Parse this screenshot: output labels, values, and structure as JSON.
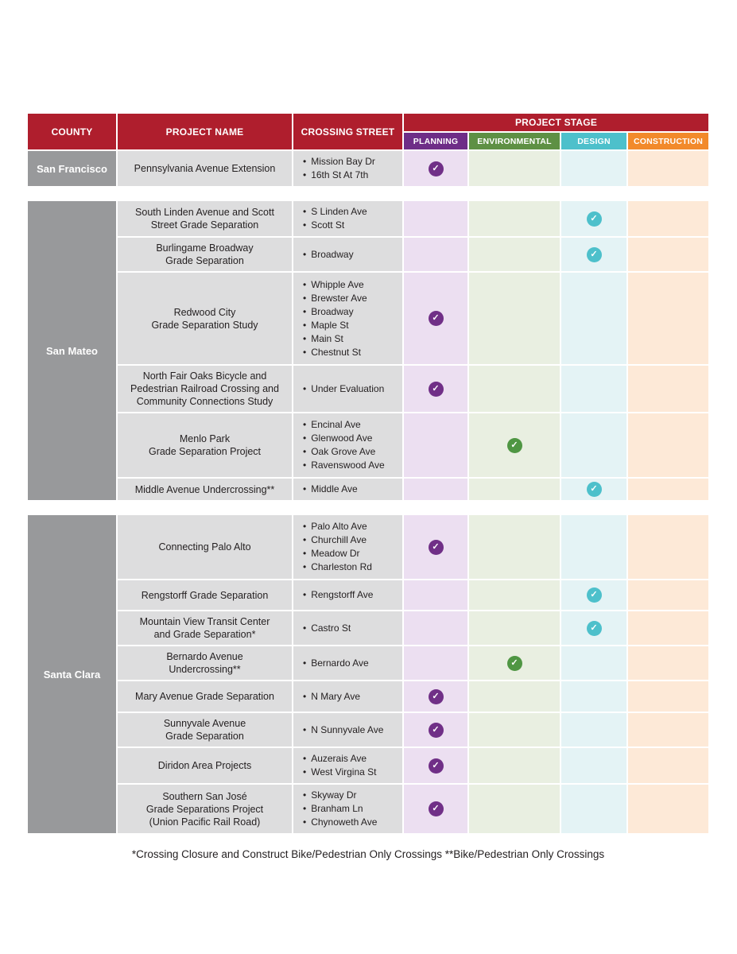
{
  "colors": {
    "header_red": "#AF1E2D",
    "county_grey": "#98999B",
    "cell_grey": "#DDDDDE",
    "white": "#FFFFFF",
    "text": "#231F20"
  },
  "table": {
    "headers": {
      "county": "COUNTY",
      "project_name": "PROJECT NAME",
      "crossing_street": "CROSSING STREET",
      "project_stage": "PROJECT STAGE"
    },
    "stages": [
      {
        "label": "PLANNING",
        "color": "#6E2D87",
        "check_color": "#702F87",
        "tint": "#ECDFF1"
      },
      {
        "label": "ENVIRONMENTAL",
        "color": "#5E9044",
        "check_color": "#4F9643",
        "tint": "#E9EFE1"
      },
      {
        "label": "DESIGN",
        "color": "#4DC0CB",
        "check_color": "#4DC0CB",
        "tint": "#E4F3F5"
      },
      {
        "label": "CONSTRUCTION",
        "color": "#F28A2B",
        "check_color": "#F28A2B",
        "tint": "#FDE9D7"
      }
    ],
    "sections": [
      {
        "county": "San Francisco",
        "rows": [
          {
            "name_lines": [
              "Pennsylvania Avenue Extension"
            ],
            "streets": [
              "Mission Bay Dr",
              "16th St At 7th"
            ],
            "stage": "PLANNING"
          }
        ]
      },
      {
        "county": "San Mateo",
        "rows": [
          {
            "name_lines": [
              "South Linden Avenue and Scott",
              "Street Grade Separation"
            ],
            "streets": [
              "S Linden Ave",
              "Scott St"
            ],
            "stage": "DESIGN"
          },
          {
            "name_lines": [
              "Burlingame Broadway",
              "Grade Separation"
            ],
            "streets": [
              "Broadway"
            ],
            "stage": "DESIGN"
          },
          {
            "name_lines": [
              "Redwood City",
              "Grade Separation Study"
            ],
            "streets": [
              "Whipple Ave",
              "Brewster Ave",
              "Broadway",
              "Maple St",
              "Main St",
              "Chestnut St"
            ],
            "stage": "PLANNING"
          },
          {
            "name_lines": [
              "North Fair Oaks Bicycle and",
              "Pedestrian Railroad Crossing and",
              "Community Connections Study"
            ],
            "streets": [
              "Under Evaluation"
            ],
            "stage": "PLANNING"
          },
          {
            "name_lines": [
              "Menlo Park",
              "Grade Separation Project"
            ],
            "streets": [
              "Encinal Ave",
              "Glenwood Ave",
              "Oak Grove Ave",
              "Ravenswood Ave"
            ],
            "stage": "ENVIRONMENTAL"
          },
          {
            "name_lines": [
              "Middle Avenue Undercrossing**"
            ],
            "streets": [
              "Middle Ave"
            ],
            "stage": "DESIGN"
          }
        ]
      },
      {
        "county": "Santa Clara",
        "rows": [
          {
            "name_lines": [
              "Connecting Palo Alto"
            ],
            "streets": [
              "Palo Alto Ave",
              "Churchill Ave",
              "Meadow Dr",
              "Charleston Rd"
            ],
            "stage": "PLANNING"
          },
          {
            "name_lines": [
              "Rengstorff Grade Separation"
            ],
            "streets": [
              "Rengstorff Ave"
            ],
            "stage": "DESIGN"
          },
          {
            "name_lines": [
              "Mountain View Transit Center",
              "and Grade Separation*"
            ],
            "streets": [
              "Castro St"
            ],
            "stage": "DESIGN"
          },
          {
            "name_lines": [
              "Bernardo Avenue",
              "Undercrossing**"
            ],
            "streets": [
              "Bernardo Ave"
            ],
            "stage": "ENVIRONMENTAL"
          },
          {
            "name_lines": [
              "Mary Avenue Grade Separation"
            ],
            "streets": [
              "N Mary Ave"
            ],
            "stage": "PLANNING"
          },
          {
            "name_lines": [
              "Sunnyvale Avenue",
              "Grade Separation"
            ],
            "streets": [
              "N Sunnyvale Ave"
            ],
            "stage": "PLANNING"
          },
          {
            "name_lines": [
              "Diridon Area Projects"
            ],
            "streets": [
              "Auzerais Ave",
              "West Virgina St"
            ],
            "stage": "PLANNING"
          },
          {
            "name_lines": [
              "Southern San José",
              "Grade Separations Project",
              "(Union Pacific Rail Road)"
            ],
            "streets": [
              "Skyway Dr",
              "Branham Ln",
              "Chynoweth Ave"
            ],
            "stage": "PLANNING"
          }
        ]
      }
    ]
  },
  "footnote": "*Crossing Closure and Construct Bike/Pedestrian Only Crossings  **Bike/Pedestrian Only Crossings",
  "icons": {
    "check": "check-circle-icon",
    "bullet": "bullet-icon"
  },
  "check_glyph": "✓",
  "bullet_glyph": "•"
}
